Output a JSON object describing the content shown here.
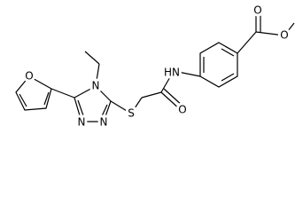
{
  "atoms": [
    "O",
    "O",
    "HN",
    "O",
    "S",
    "N",
    "N",
    "N",
    "O"
  ]
}
